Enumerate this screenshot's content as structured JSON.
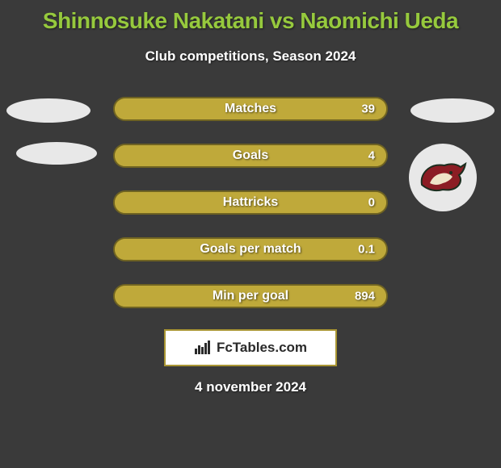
{
  "title": {
    "text": "Shinnosuke Nakatani vs Naomichi Ueda",
    "color": "#96c93d",
    "fontsize": 28
  },
  "subtitle": {
    "text": "Club competitions, Season 2024",
    "fontsize": 17
  },
  "track": {
    "bg": "#a99533",
    "border": "#6f6322"
  },
  "bars": [
    {
      "label": "Matches",
      "value": "39",
      "fill_color": "#bfa93a",
      "fill_pct": 100
    },
    {
      "label": "Goals",
      "value": "4",
      "fill_color": "#bfa93a",
      "fill_pct": 100
    },
    {
      "label": "Hattricks",
      "value": "0",
      "fill_color": "#bfa93a",
      "fill_pct": 100
    },
    {
      "label": "Goals per match",
      "value": "0.1",
      "fill_color": "#bfa93a",
      "fill_pct": 100
    },
    {
      "label": "Min per goal",
      "value": "894",
      "fill_color": "#bfa93a",
      "fill_pct": 100
    }
  ],
  "bar_label_fontsize": 16,
  "bar_value_fontsize": 15,
  "brand": {
    "text": "FcTables.com",
    "box_bg": "#ffffff",
    "box_border": "#a99533"
  },
  "date": {
    "text": "4 november 2024",
    "fontsize": 17
  },
  "badges": {
    "left": {
      "bg": "#e8e8e8"
    },
    "right": {
      "bg": "#e8e8e8"
    },
    "logo_right": {
      "bg": "#e8e8e8",
      "coyote_body": "#8c1d24",
      "coyote_outline": "#1c2e1f",
      "coyote_cream": "#efe4c8"
    }
  }
}
